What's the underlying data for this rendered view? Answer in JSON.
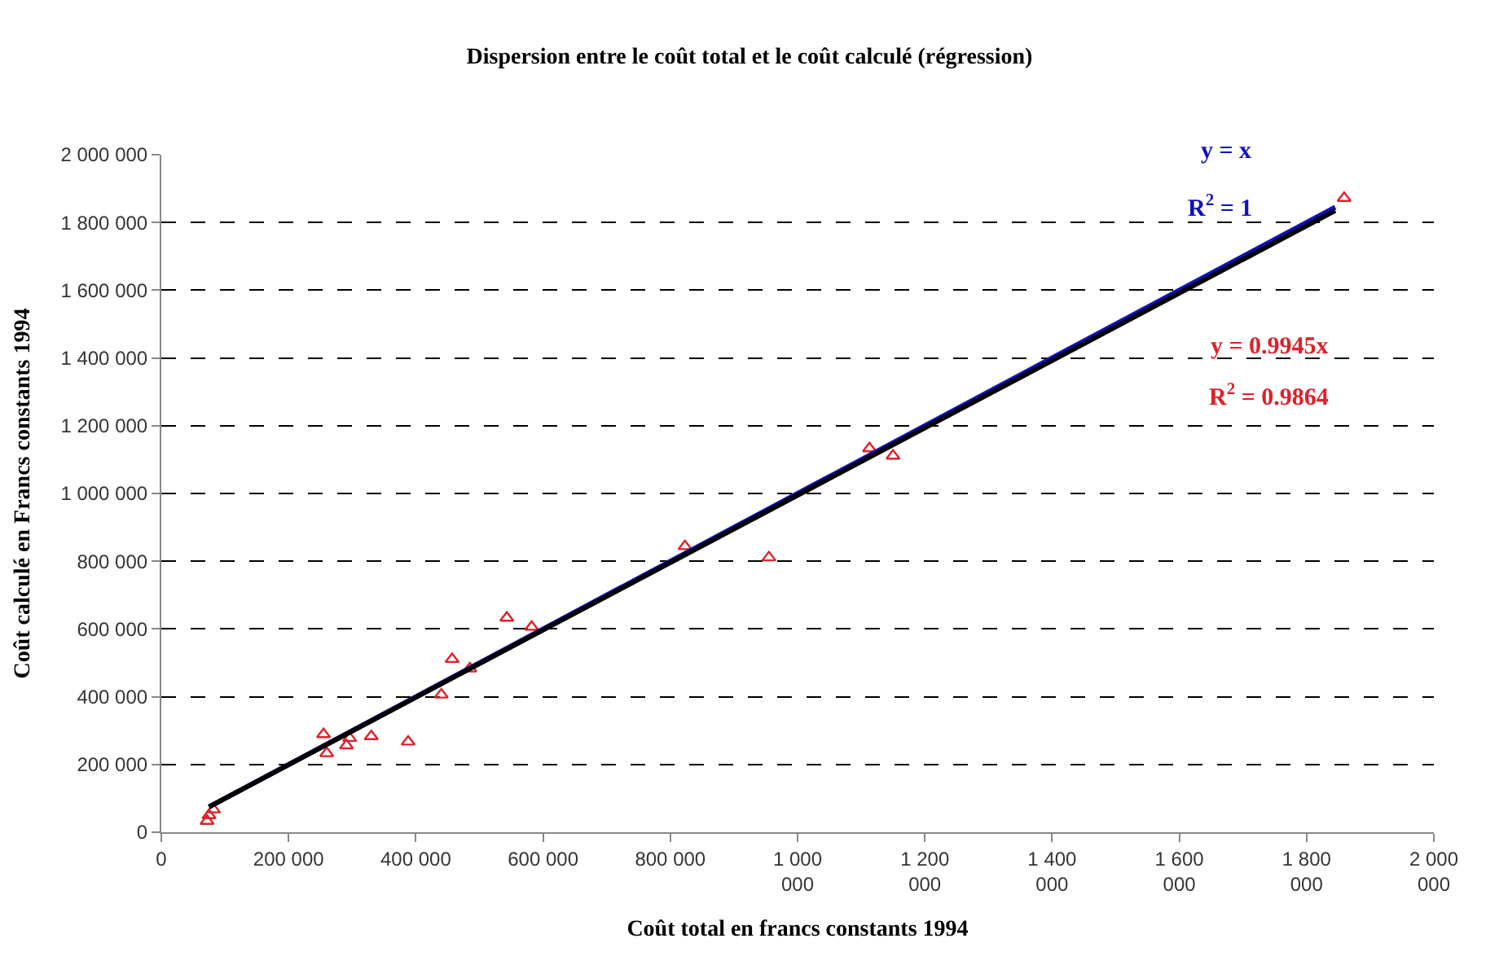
{
  "chart_data": {
    "type": "scatter",
    "title": "Dispersion entre le coût total et le coût calculé (régression)",
    "xlabel": "Coût total en francs constants 1994",
    "ylabel": "Coût calculé en Francs constants 1994",
    "xlim": [
      0,
      2000000
    ],
    "ylim": [
      0,
      2000000
    ],
    "xticks": [
      0,
      {
        "value": 200000,
        "label": "200 000"
      },
      {
        "value": 400000,
        "label": "400 000"
      },
      {
        "value": 600000,
        "label": "600 000"
      },
      {
        "value": 800000,
        "label": "800 000"
      },
      {
        "value": 1000000,
        "label": "1 000 000"
      },
      {
        "value": 1200000,
        "label": "1 200 000"
      },
      {
        "value": 1400000,
        "label": "1 400 000"
      },
      {
        "value": 1600000,
        "label": "1 600 000"
      },
      {
        "value": 1800000,
        "label": "1 800 000"
      },
      {
        "value": 2000000,
        "label": "2 000 000"
      }
    ],
    "yticks": [
      0,
      {
        "value": 200000,
        "label": "200 000"
      },
      {
        "value": 400000,
        "label": "400 000"
      },
      {
        "value": 600000,
        "label": "600 000"
      },
      {
        "value": 800000,
        "label": "800 000"
      },
      {
        "value": 1000000,
        "label": "1 000 000"
      },
      {
        "value": 1200000,
        "label": "1 200 000"
      },
      {
        "value": 1400000,
        "label": "1 400 000"
      },
      {
        "value": 1600000,
        "label": "1 600 000"
      },
      {
        "value": 1800000,
        "label": "1 800 000"
      },
      {
        "value": 2000000,
        "label": "2 000 000"
      }
    ],
    "grid": "y",
    "series": [
      {
        "marker": "triangle",
        "color": "#e0202a",
        "x": [
          72000,
          75000,
          82000,
          255000,
          260000,
          291000,
          296000,
          330000,
          388000,
          440000,
          457000,
          485000,
          543000,
          582000,
          823000,
          955000,
          1113000,
          1150000,
          1859000
        ],
        "values": [
          33000,
          50000,
          67000,
          289000,
          233000,
          256000,
          278000,
          283000,
          267000,
          406000,
          511000,
          483000,
          633000,
          606000,
          844000,
          811000,
          1133000,
          1111000,
          1872000
        ]
      },
      {
        "type": "line",
        "color": "#1010c0",
        "x": [
          75000,
          1845000
        ],
        "values": [
          75000,
          1845000
        ]
      },
      {
        "type": "line",
        "color": "#000000",
        "x": [
          75000,
          1845000
        ],
        "values": [
          75000,
          1835000
        ]
      }
    ],
    "annotations": [
      "y = x",
      "R$^{2}$ = 1",
      "y = 0.9945x",
      "R$^{2}$ = 0.9864"
    ]
  }
}
